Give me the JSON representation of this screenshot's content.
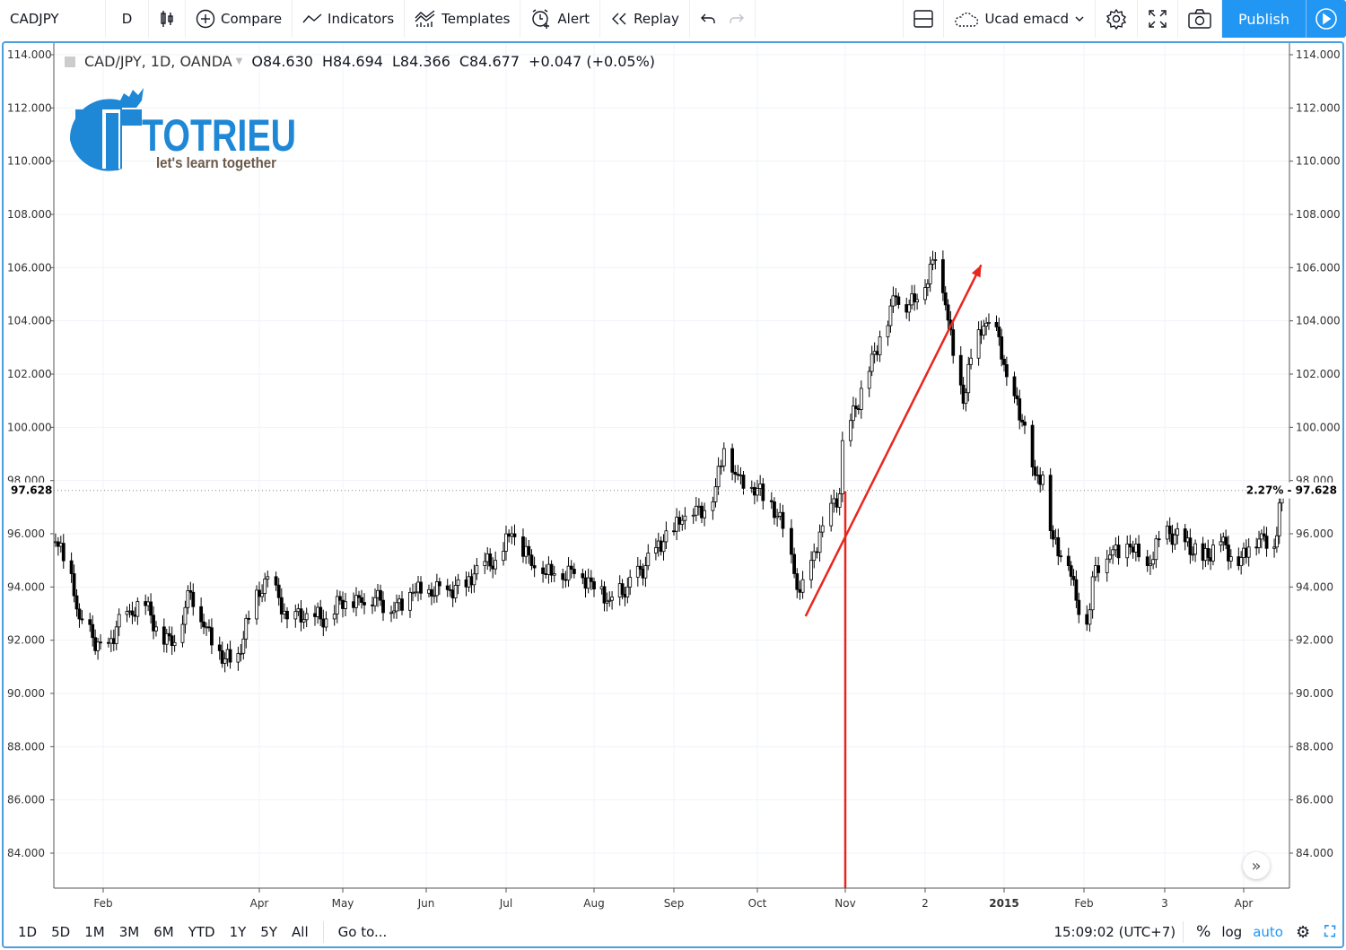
{
  "toolbar": {
    "symbol": "CADJPY",
    "interval": "D",
    "compare": "Compare",
    "indicators": "Indicators",
    "templates": "Templates",
    "alert": "Alert",
    "replay": "Replay",
    "layout_name": "Ucad emacd",
    "publish": "Publish"
  },
  "legend": {
    "title": "CAD/JPY, 1D, OANDA",
    "o_label": "O",
    "o": "84.630",
    "h_label": "H",
    "h": "84.694",
    "l_label": "L",
    "l": "84.366",
    "c_label": "C",
    "c": "84.677",
    "change": "+0.047 (+0.05%)"
  },
  "logo": {
    "brand": "TOTRIEU",
    "tagline": "let's learn together",
    "color": "#1e88d6"
  },
  "bottom": {
    "ranges": [
      "1D",
      "5D",
      "1M",
      "3M",
      "6M",
      "YTD",
      "1Y",
      "5Y",
      "All"
    ],
    "goto": "Go to...",
    "time": "15:09:02 (UTC+7)",
    "percent": "%",
    "log": "log",
    "auto": "auto"
  },
  "colors": {
    "accent": "#2196f3",
    "annotation": "#e8261e",
    "candle": "#000000",
    "grid": "#f0f3fa"
  },
  "chart_data": {
    "type": "candlestick",
    "symbol": "CAD/JPY",
    "interval": "1D",
    "ylim": [
      83,
      114.4
    ],
    "y_ticks": [
      84,
      86,
      88,
      90,
      92,
      94,
      96,
      98,
      100,
      102,
      104,
      106,
      108,
      110,
      112,
      114
    ],
    "x_ticks": [
      {
        "label": "Feb",
        "date": "2014-02-01"
      },
      {
        "label": "Apr",
        "date": "2014-04-01"
      },
      {
        "label": "May",
        "date": "2014-05-01"
      },
      {
        "label": "Jun",
        "date": "2014-06-01"
      },
      {
        "label": "Jul",
        "date": "2014-07-01"
      },
      {
        "label": "Aug",
        "date": "2014-08-01"
      },
      {
        "label": "Sep",
        "date": "2014-09-01"
      },
      {
        "label": "Oct",
        "date": "2014-10-01"
      },
      {
        "label": "Nov",
        "date": "2014-11-01"
      },
      {
        "label": "2",
        "date": "2014-12-01"
      },
      {
        "label": "2015",
        "date": "2015-01-01",
        "bold": true
      },
      {
        "label": "Feb",
        "date": "2015-02-01"
      },
      {
        "label": "3",
        "date": "2015-03-01"
      },
      {
        "label": "Apr",
        "date": "2015-04-01"
      }
    ],
    "last_price": {
      "value": "97.628",
      "change_pct": "2.27%"
    },
    "closes": [
      [
        "2014-01-14",
        95.7
      ],
      [
        "2014-01-20",
        94.5
      ],
      [
        "2014-01-23",
        92.8
      ],
      [
        "2014-01-28",
        92.1
      ],
      [
        "2014-02-02",
        91.3
      ],
      [
        "2014-02-06",
        92.5
      ],
      [
        "2014-02-11",
        93.1
      ],
      [
        "2014-02-17",
        93.3
      ],
      [
        "2014-02-21",
        92.5
      ],
      [
        "2014-02-27",
        91.8
      ],
      [
        "2014-03-06",
        93.8
      ],
      [
        "2014-03-12",
        92.5
      ],
      [
        "2014-03-19",
        91.3
      ],
      [
        "2014-03-24",
        91.5
      ],
      [
        "2014-03-28",
        92.8
      ],
      [
        "2014-04-03",
        94.3
      ],
      [
        "2014-04-08",
        93.6
      ],
      [
        "2014-04-11",
        92.8
      ],
      [
        "2014-04-18",
        93.0
      ],
      [
        "2014-04-25",
        92.8
      ],
      [
        "2014-04-30",
        93.5
      ],
      [
        "2014-05-07",
        93.6
      ],
      [
        "2014-05-13",
        93.6
      ],
      [
        "2014-05-20",
        93.1
      ],
      [
        "2014-05-27",
        93.8
      ],
      [
        "2014-06-02",
        93.9
      ],
      [
        "2014-06-09",
        93.9
      ],
      [
        "2014-06-16",
        94.0
      ],
      [
        "2014-06-20",
        94.8
      ],
      [
        "2014-06-27",
        95.0
      ],
      [
        "2014-07-03",
        96.0
      ],
      [
        "2014-07-09",
        95.2
      ],
      [
        "2014-07-14",
        94.5
      ],
      [
        "2014-07-18",
        94.5
      ],
      [
        "2014-07-25",
        94.5
      ],
      [
        "2014-07-31",
        94.2
      ],
      [
        "2014-08-07",
        93.5
      ],
      [
        "2014-08-14",
        94.0
      ],
      [
        "2014-08-21",
        94.8
      ],
      [
        "2014-08-28",
        95.7
      ],
      [
        "2014-09-04",
        96.5
      ],
      [
        "2014-09-08",
        96.7
      ],
      [
        "2014-09-15",
        97.2
      ],
      [
        "2014-09-19",
        99.2
      ],
      [
        "2014-09-24",
        98.2
      ],
      [
        "2014-10-01",
        97.7
      ],
      [
        "2014-10-06",
        97.2
      ],
      [
        "2014-10-10",
        96.2
      ],
      [
        "2014-10-14",
        94.5
      ],
      [
        "2014-10-16",
        93.8
      ],
      [
        "2014-10-20",
        95.0
      ],
      [
        "2014-10-24",
        96.3
      ],
      [
        "2014-10-30",
        97.5
      ],
      [
        "2014-10-31",
        99.5
      ],
      [
        "2014-11-05",
        100.7
      ],
      [
        "2014-11-10",
        102.1
      ],
      [
        "2014-11-14",
        103.4
      ],
      [
        "2014-11-20",
        104.9
      ],
      [
        "2014-11-25",
        104.6
      ],
      [
        "2014-11-28",
        104.8
      ],
      [
        "2014-12-05",
        106.3
      ],
      [
        "2014-12-09",
        104.6
      ],
      [
        "2014-12-12",
        102.7
      ],
      [
        "2014-12-16",
        100.9
      ],
      [
        "2014-12-19",
        102.6
      ],
      [
        "2014-12-24",
        103.8
      ],
      [
        "2014-12-30",
        103.4
      ],
      [
        "2015-01-02",
        101.9
      ],
      [
        "2015-01-08",
        100.2
      ],
      [
        "2015-01-13",
        98.2
      ],
      [
        "2015-01-16",
        98.2
      ],
      [
        "2015-01-20",
        95.8
      ],
      [
        "2015-01-26",
        94.8
      ],
      [
        "2015-01-29",
        93.5
      ],
      [
        "2015-02-02",
        92.6
      ],
      [
        "2015-02-05",
        94.8
      ],
      [
        "2015-02-10",
        95.2
      ],
      [
        "2015-02-17",
        95.5
      ],
      [
        "2015-02-23",
        94.8
      ],
      [
        "2015-02-27",
        95.8
      ],
      [
        "2015-03-03",
        96.0
      ],
      [
        "2015-03-09",
        95.7
      ],
      [
        "2015-03-16",
        95.0
      ],
      [
        "2015-03-23",
        95.7
      ],
      [
        "2015-03-30",
        94.8
      ],
      [
        "2015-04-03",
        95.5
      ],
      [
        "2015-04-08",
        96.0
      ],
      [
        "2015-04-13",
        95.5
      ],
      [
        "2015-04-16",
        97.628
      ]
    ],
    "annotations": [
      {
        "type": "arrow",
        "from": [
          "2014-10-18",
          92.9
        ],
        "to": [
          "2014-12-23",
          106.1
        ],
        "color": "#e8261e"
      },
      {
        "type": "vertical_line",
        "date": "2014-11-01",
        "from_price": 97.6,
        "color": "#e8261e"
      }
    ]
  }
}
